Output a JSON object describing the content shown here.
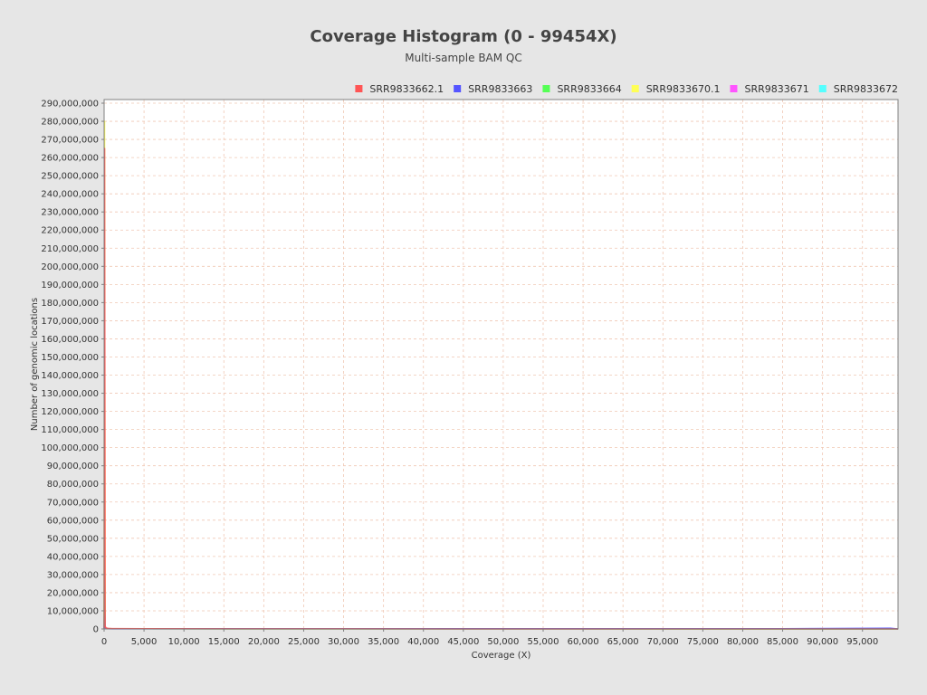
{
  "chart_data": {
    "type": "line",
    "title": "Coverage Histogram (0 - 99454X)",
    "subtitle": "Multi-sample BAM QC",
    "xlabel": "Coverage (X)",
    "ylabel": "Number of genomic locations",
    "xlim": [
      0,
      99454
    ],
    "ylim": [
      0,
      292000000
    ],
    "x_ticks": [
      0,
      5000,
      10000,
      15000,
      20000,
      25000,
      30000,
      35000,
      40000,
      45000,
      50000,
      55000,
      60000,
      65000,
      70000,
      75000,
      80000,
      85000,
      90000,
      95000
    ],
    "x_tick_labels": [
      "0",
      "5,000",
      "10,000",
      "15,000",
      "20,000",
      "25,000",
      "30,000",
      "35,000",
      "40,000",
      "45,000",
      "50,000",
      "55,000",
      "60,000",
      "65,000",
      "70,000",
      "75,000",
      "80,000",
      "85,000",
      "90,000",
      "95,000"
    ],
    "y_ticks": [
      0,
      10000000,
      20000000,
      30000000,
      40000000,
      50000000,
      60000000,
      70000000,
      80000000,
      90000000,
      100000000,
      110000000,
      120000000,
      130000000,
      140000000,
      150000000,
      160000000,
      170000000,
      180000000,
      190000000,
      200000000,
      210000000,
      220000000,
      230000000,
      240000000,
      250000000,
      260000000,
      270000000,
      280000000,
      290000000
    ],
    "y_tick_labels": [
      "0",
      "10,000,000",
      "20,000,000",
      "30,000,000",
      "40,000,000",
      "50,000,000",
      "60,000,000",
      "70,000,000",
      "80,000,000",
      "90,000,000",
      "100,000,000",
      "110,000,000",
      "120,000,000",
      "130,000,000",
      "140,000,000",
      "150,000,000",
      "160,000,000",
      "170,000,000",
      "180,000,000",
      "190,000,000",
      "200,000,000",
      "210,000,000",
      "220,000,000",
      "230,000,000",
      "240,000,000",
      "250,000,000",
      "260,000,000",
      "270,000,000",
      "280,000,000",
      "290,000,000"
    ],
    "grid": true,
    "legend_position": "top-right",
    "series": [
      {
        "name": "SRR9833662.1",
        "color": "#ff5555",
        "x": [
          0,
          60,
          120,
          250,
          500,
          1000,
          5000,
          20000,
          50000,
          80000,
          99454
        ],
        "y": [
          0,
          265000000,
          1500000,
          500000,
          300000,
          200000,
          100000,
          50000,
          20000,
          10000,
          0
        ]
      },
      {
        "name": "SRR9833663",
        "color": "#5555ff",
        "x": [
          0,
          60,
          120,
          250,
          500,
          1000,
          40000,
          55000,
          70000,
          85000,
          98500,
          99454
        ],
        "y": [
          0,
          17000000,
          1000000,
          300000,
          200000,
          100000,
          150000,
          100000,
          150000,
          100000,
          400000,
          0
        ]
      },
      {
        "name": "SRR9833664",
        "color": "#55ff55",
        "x": [
          0,
          60,
          120,
          250,
          500,
          1000,
          99454
        ],
        "y": [
          0,
          50000000,
          1000000,
          300000,
          150000,
          100000,
          0
        ]
      },
      {
        "name": "SRR9833670.1",
        "color": "#ffff55",
        "x": [
          0,
          60,
          120,
          250,
          500,
          1000,
          99454
        ],
        "y": [
          0,
          280000000,
          1000000,
          300000,
          150000,
          100000,
          0
        ]
      },
      {
        "name": "SRR9833671",
        "color": "#ff55ff",
        "x": [
          0,
          60,
          120,
          250,
          500,
          1000,
          99454
        ],
        "y": [
          0,
          20000000,
          800000,
          200000,
          100000,
          50000,
          0
        ]
      },
      {
        "name": "SRR9833672",
        "color": "#55ffff",
        "x": [
          0,
          60,
          120,
          250,
          500,
          1000,
          99454
        ],
        "y": [
          0,
          60000000,
          800000,
          200000,
          100000,
          50000,
          0
        ]
      }
    ],
    "colors": {
      "background": "#e6e6e6",
      "plot_background": "#ffffff",
      "gridline": "#f0c8b4",
      "axis": "#808080",
      "text": "#333333"
    }
  }
}
